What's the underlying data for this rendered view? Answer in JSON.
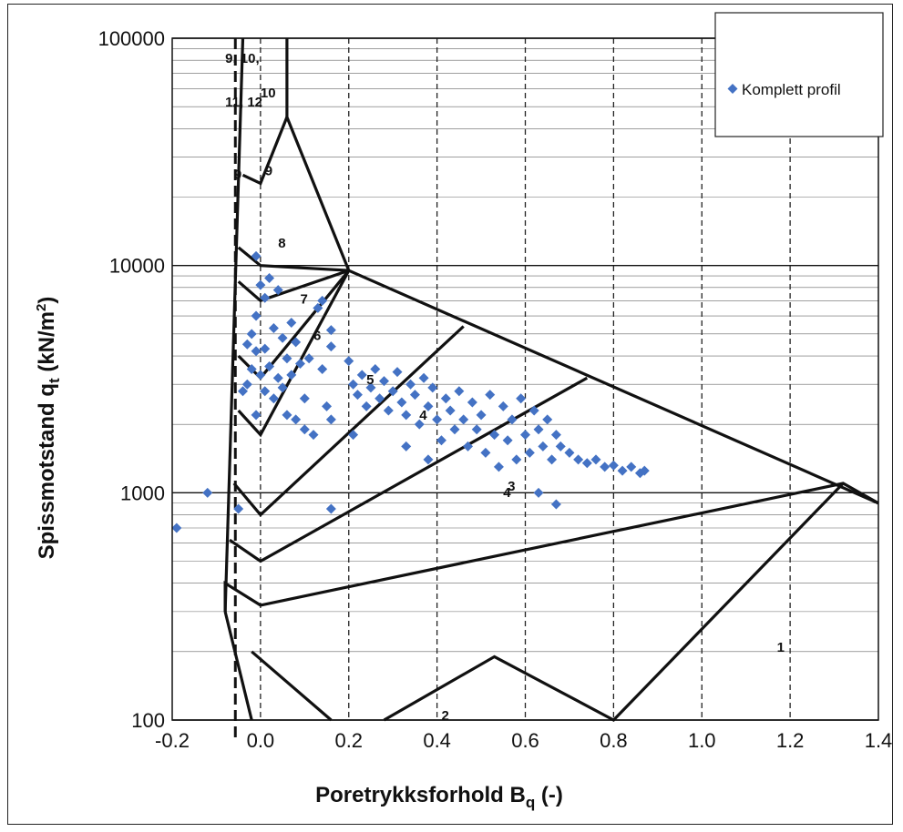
{
  "chart_data": {
    "type": "scatter",
    "title": "",
    "xlabel": "Poretrykksforhold B",
    "xlabel_sub": "q",
    "xlabel_suffix": " (-)",
    "ylabel": "Spissmotstand q",
    "ylabel_sub": "t",
    "ylabel_suffix": " (kN/m",
    "ylabel_sup": "2",
    "ylabel_close": ")",
    "xlim": [
      -0.2,
      1.4
    ],
    "ylim": [
      100,
      100000
    ],
    "yscale": "log",
    "x_ticks": [
      "-0.2",
      "0.0",
      "0.2",
      "0.4",
      "0.6",
      "0.8",
      "1.0",
      "1.2",
      "1.4"
    ],
    "x_tick_values": [
      -0.2,
      0.0,
      0.2,
      0.4,
      0.6,
      0.8,
      1.0,
      1.2,
      1.4
    ],
    "y_ticks": [
      "100",
      "1000",
      "10000",
      "100000"
    ],
    "y_tick_values": [
      100,
      1000,
      10000,
      100000
    ],
    "grid": true,
    "legend_position": "top-right",
    "series": [
      {
        "name": "Komplett profil",
        "color": "#4472c4",
        "marker": "diamond",
        "points": [
          [
            -0.19,
            700
          ],
          [
            -0.12,
            1000
          ],
          [
            -0.05,
            850
          ],
          [
            -0.04,
            2800
          ],
          [
            -0.03,
            3000
          ],
          [
            -0.03,
            4500
          ],
          [
            -0.02,
            5000
          ],
          [
            -0.02,
            3500
          ],
          [
            -0.01,
            2200
          ],
          [
            -0.01,
            4200
          ],
          [
            -0.01,
            6000
          ],
          [
            -0.01,
            11000
          ],
          [
            0.0,
            8200
          ],
          [
            0.0,
            3300
          ],
          [
            0.01,
            2800
          ],
          [
            0.01,
            4300
          ],
          [
            0.01,
            7200
          ],
          [
            0.02,
            8800
          ],
          [
            0.02,
            3600
          ],
          [
            0.03,
            5300
          ],
          [
            0.03,
            2600
          ],
          [
            0.04,
            7800
          ],
          [
            0.04,
            3200
          ],
          [
            0.05,
            4800
          ],
          [
            0.05,
            2900
          ],
          [
            0.06,
            3900
          ],
          [
            0.06,
            2200
          ],
          [
            0.07,
            5600
          ],
          [
            0.07,
            3300
          ],
          [
            0.08,
            2100
          ],
          [
            0.08,
            4600
          ],
          [
            0.09,
            3700
          ],
          [
            0.1,
            2600
          ],
          [
            0.1,
            1900
          ],
          [
            0.11,
            3900
          ],
          [
            0.12,
            1800
          ],
          [
            0.13,
            6500
          ],
          [
            0.14,
            7000
          ],
          [
            0.14,
            3500
          ],
          [
            0.15,
            2400
          ],
          [
            0.16,
            4400
          ],
          [
            0.16,
            5200
          ],
          [
            0.16,
            2100
          ],
          [
            0.16,
            850
          ],
          [
            0.2,
            3800
          ],
          [
            0.21,
            3000
          ],
          [
            0.21,
            1800
          ],
          [
            0.22,
            2700
          ],
          [
            0.23,
            3300
          ],
          [
            0.24,
            2400
          ],
          [
            0.25,
            2900
          ],
          [
            0.26,
            3500
          ],
          [
            0.27,
            2600
          ],
          [
            0.28,
            3100
          ],
          [
            0.29,
            2300
          ],
          [
            0.3,
            2800
          ],
          [
            0.31,
            3400
          ],
          [
            0.32,
            2500
          ],
          [
            0.33,
            2200
          ],
          [
            0.33,
            1600
          ],
          [
            0.34,
            3000
          ],
          [
            0.35,
            2700
          ],
          [
            0.36,
            2000
          ],
          [
            0.37,
            3200
          ],
          [
            0.38,
            2400
          ],
          [
            0.38,
            1400
          ],
          [
            0.39,
            2900
          ],
          [
            0.4,
            2100
          ],
          [
            0.41,
            1700
          ],
          [
            0.42,
            2600
          ],
          [
            0.43,
            2300
          ],
          [
            0.44,
            1900
          ],
          [
            0.45,
            2800
          ],
          [
            0.46,
            2100
          ],
          [
            0.47,
            1600
          ],
          [
            0.48,
            2500
          ],
          [
            0.49,
            1900
          ],
          [
            0.5,
            2200
          ],
          [
            0.51,
            1500
          ],
          [
            0.52,
            2700
          ],
          [
            0.53,
            1800
          ],
          [
            0.54,
            1300
          ],
          [
            0.55,
            2400
          ],
          [
            0.56,
            1700
          ],
          [
            0.57,
            2100
          ],
          [
            0.58,
            1400
          ],
          [
            0.59,
            2600
          ],
          [
            0.6,
            1800
          ],
          [
            0.61,
            1500
          ],
          [
            0.62,
            2300
          ],
          [
            0.63,
            1900
          ],
          [
            0.63,
            1000
          ],
          [
            0.64,
            1600
          ],
          [
            0.65,
            2100
          ],
          [
            0.66,
            1400
          ],
          [
            0.67,
            1800
          ],
          [
            0.67,
            890
          ],
          [
            0.68,
            1600
          ],
          [
            0.7,
            1500
          ],
          [
            0.72,
            1400
          ],
          [
            0.74,
            1350
          ],
          [
            0.76,
            1400
          ],
          [
            0.78,
            1300
          ],
          [
            0.8,
            1320
          ],
          [
            0.82,
            1250
          ],
          [
            0.84,
            1300
          ],
          [
            0.86,
            1220
          ],
          [
            0.87,
            1250
          ]
        ]
      }
    ]
  },
  "zone_labels": [
    "9, 10,",
    "11, 12",
    "10",
    "9",
    "9",
    "8",
    "7",
    "6",
    "5",
    "4",
    "3",
    "4",
    "1",
    "2"
  ]
}
